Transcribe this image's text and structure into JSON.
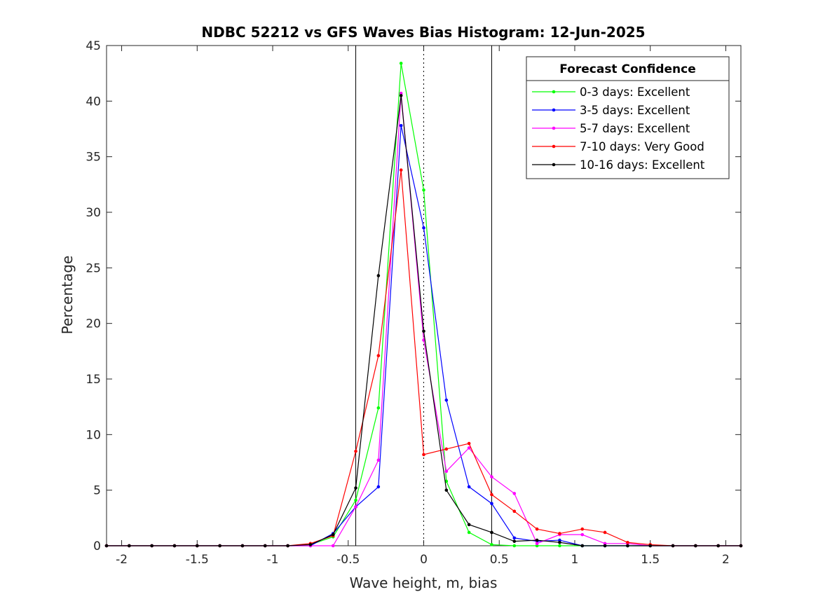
{
  "chart_data": {
    "type": "line",
    "title": "NDBC 52212 vs GFS Waves Bias Histogram: 12-Jun-2025",
    "xlabel": "Wave height, m, bias",
    "ylabel": "Percentage",
    "xlim": [
      -2.1,
      2.1
    ],
    "ylim": [
      0,
      45
    ],
    "xticks": [
      -2,
      -1.5,
      -1,
      -0.5,
      0,
      0.5,
      1,
      1.5,
      2
    ],
    "xtick_labels": [
      "-2",
      "-1.5",
      "-1",
      "-0.5",
      "0",
      "0.5",
      "1",
      "1.5",
      "2"
    ],
    "yticks": [
      0,
      5,
      10,
      15,
      20,
      25,
      30,
      35,
      40,
      45
    ],
    "ytick_labels": [
      "0",
      "5",
      "10",
      "15",
      "20",
      "25",
      "30",
      "35",
      "40",
      "45"
    ],
    "grid": false,
    "legend_title": "Forecast Confidence",
    "legend_position": "top-right",
    "reference_lines": {
      "solid_x": [
        -0.45,
        0.45
      ],
      "dotted_x": [
        0
      ]
    },
    "x": [
      -2.1,
      -1.95,
      -1.8,
      -1.65,
      -1.5,
      -1.35,
      -1.2,
      -1.05,
      -0.9,
      -0.75,
      -0.6,
      -0.45,
      -0.3,
      -0.15,
      0,
      0.15,
      0.3,
      0.45,
      0.6,
      0.75,
      0.9,
      1.05,
      1.2,
      1.35,
      1.5,
      1.65,
      1.8,
      1.95,
      2.1
    ],
    "series": [
      {
        "name": "0-3 days: Excellent",
        "color": "#00ff00",
        "values": [
          0,
          0,
          0,
          0,
          0,
          0,
          0,
          0,
          0,
          0.1,
          0.8,
          4.1,
          12.4,
          43.4,
          32.0,
          5.8,
          1.2,
          0.1,
          0,
          0,
          0,
          0,
          0,
          0,
          0,
          0,
          0,
          0,
          0
        ]
      },
      {
        "name": "3-5 days: Excellent",
        "color": "#0000ff",
        "values": [
          0,
          0,
          0,
          0,
          0,
          0,
          0,
          0,
          0,
          0,
          1.1,
          3.5,
          5.3,
          37.8,
          28.6,
          13.1,
          5.3,
          3.8,
          0.7,
          0.4,
          0.5,
          0,
          0,
          0,
          0,
          0,
          0,
          0,
          0
        ]
      },
      {
        "name": "5-7 days: Excellent",
        "color": "#ff00ff",
        "values": [
          0,
          0,
          0,
          0,
          0,
          0,
          0,
          0,
          0,
          0,
          0,
          3.5,
          7.7,
          40.7,
          18.5,
          6.7,
          8.8,
          6.2,
          4.7,
          0.2,
          1.0,
          1.0,
          0.2,
          0.2,
          0,
          0,
          0,
          0,
          0
        ]
      },
      {
        "name": "7-10 days: Very Good",
        "color": "#ff0000",
        "values": [
          0,
          0,
          0,
          0,
          0,
          0,
          0,
          0,
          0,
          0.2,
          0.9,
          8.5,
          17.1,
          33.8,
          8.2,
          8.7,
          9.2,
          4.6,
          3.1,
          1.5,
          1.1,
          1.5,
          1.2,
          0.3,
          0.1,
          0,
          0,
          0,
          0
        ]
      },
      {
        "name": "10-16 days: Excellent",
        "color": "#000000",
        "values": [
          0,
          0,
          0,
          0,
          0,
          0,
          0,
          0,
          0,
          0.1,
          1.0,
          5.2,
          24.3,
          40.5,
          19.3,
          5.0,
          1.9,
          1.2,
          0.4,
          0.5,
          0.3,
          0,
          0,
          0,
          0,
          0,
          0,
          0,
          0
        ]
      }
    ]
  }
}
